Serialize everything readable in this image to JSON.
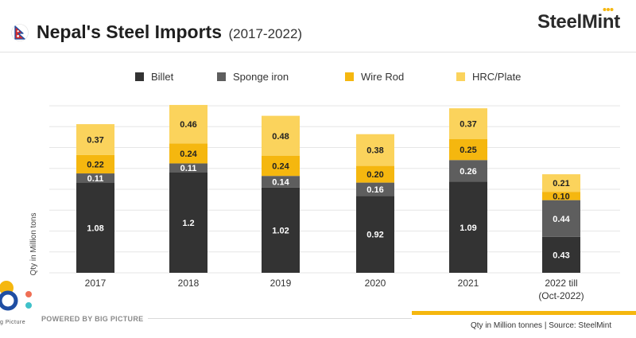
{
  "header": {
    "title": "Nepal's Steel Imports",
    "subtitle": "(2017-2022)",
    "brand": "SteelMint"
  },
  "footer": {
    "powered_by": "POWERED BY BIG PICTURE",
    "logo_text": "g Picture",
    "source": "Qty in Million tonnes  |  Source: SteelMint"
  },
  "colors": {
    "billet": "#333333",
    "sponge_iron": "#5e5e5e",
    "wire_rod": "#f5b70f",
    "hrc_plate": "#fbd35c",
    "accent": "#f5b70f"
  },
  "chart_data": {
    "type": "bar",
    "stacked": true,
    "title": "Nepal's Steel Imports",
    "subtitle": "(2017-2022)",
    "ylabel": "Qty in Million tons",
    "xlabel": "",
    "ylim": [
      0,
      2.0
    ],
    "grid": true,
    "legend_position": "top",
    "categories": [
      "2017",
      "2018",
      "2019",
      "2020",
      "2021",
      "2022 till\n(Oct-2022)"
    ],
    "series": [
      {
        "name": "Billet",
        "color": "#333333",
        "values": [
          1.08,
          1.2,
          1.02,
          0.92,
          1.09,
          0.43
        ]
      },
      {
        "name": "Sponge iron",
        "color": "#5e5e5e",
        "values": [
          0.11,
          0.11,
          0.14,
          0.16,
          0.26,
          0.44
        ]
      },
      {
        "name": "Wire Rod",
        "color": "#f5b70f",
        "values": [
          0.22,
          0.24,
          0.24,
          0.2,
          0.25,
          0.1
        ]
      },
      {
        "name": "HRC/Plate",
        "color": "#fbd35c",
        "values": [
          0.37,
          0.46,
          0.48,
          0.38,
          0.37,
          0.21
        ]
      }
    ],
    "data_labels": [
      [
        "1.08",
        "1.2",
        "1.02",
        "0.92",
        "1.09",
        "0.43"
      ],
      [
        "0.11",
        "0.11",
        "0.14",
        "0.16",
        "0.26",
        "0.44"
      ],
      [
        "0.22",
        "0.24",
        "0.24",
        "0.20",
        "0.25",
        "0.10"
      ],
      [
        "0.37",
        "0.46",
        "0.48",
        "0.38",
        "0.37",
        "0.21"
      ]
    ]
  }
}
